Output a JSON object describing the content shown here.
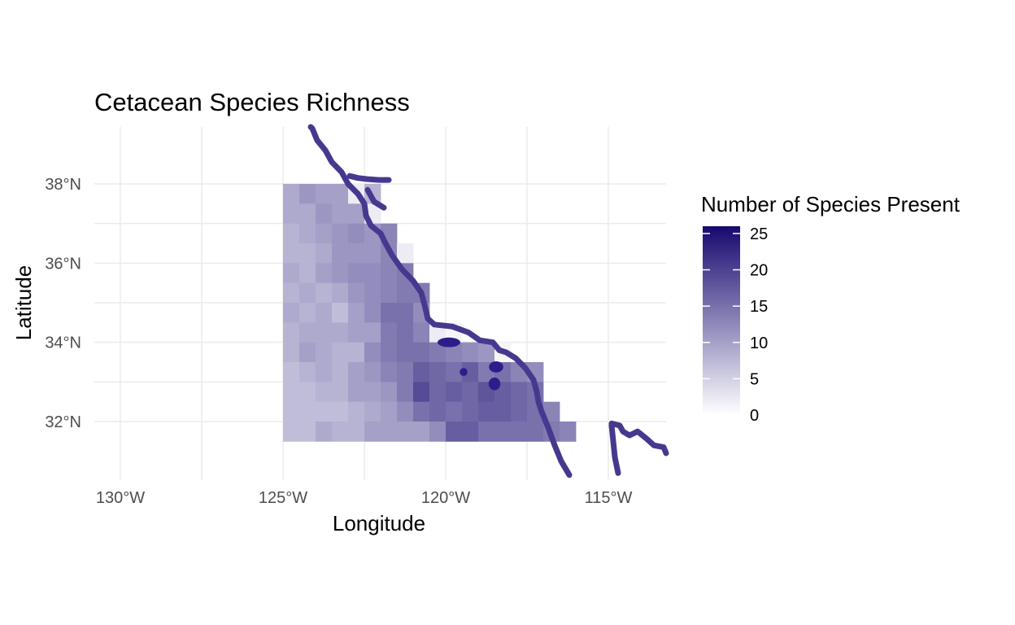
{
  "chart_data": {
    "type": "heatmap",
    "title": "Cetacean Species Richness",
    "xlabel": "Longitude",
    "ylabel": "Latitude",
    "xlim": [
      -130,
      -115
    ],
    "ylim": [
      32,
      38
    ],
    "x_ticks": [
      {
        "value": -130,
        "label": "130°W"
      },
      {
        "value": -125,
        "label": "125°W"
      },
      {
        "value": -120,
        "label": "120°W"
      },
      {
        "value": -115,
        "label": "115°W"
      }
    ],
    "y_ticks": [
      {
        "value": 38,
        "label": "38°N"
      },
      {
        "value": 36,
        "label": "36°N"
      },
      {
        "value": 34,
        "label": "34°N"
      },
      {
        "value": 32,
        "label": "32°N"
      }
    ],
    "grid": true,
    "legend": {
      "title": "Number of Species Present",
      "position": "right",
      "range": [
        0,
        25
      ],
      "breaks": [
        0,
        5,
        10,
        15,
        20,
        25
      ],
      "colors": {
        "low": "#ffffff",
        "high": "#16096f"
      }
    },
    "cell_size_degrees": 0.5,
    "grid_origin": {
      "lon": -125,
      "lat": 32
    },
    "rows_from_north": [
      {
        "lat_top": 38.0,
        "lon_start": -125.0,
        "values": [
          9,
          11,
          10,
          10,
          2,
          8
        ]
      },
      {
        "lat_top": 37.5,
        "lon_start": -125.0,
        "values": [
          9,
          9,
          11,
          10,
          10,
          2
        ]
      },
      {
        "lat_top": 37.0,
        "lon_start": -125.0,
        "values": [
          8,
          9,
          10,
          11,
          12,
          11,
          13
        ]
      },
      {
        "lat_top": 36.5,
        "lon_start": -125.0,
        "values": [
          8,
          8,
          9,
          11,
          11,
          11,
          13,
          2
        ]
      },
      {
        "lat_top": 36.0,
        "lon_start": -125.0,
        "values": [
          9,
          8,
          10,
          11,
          12,
          12,
          13,
          14
        ]
      },
      {
        "lat_top": 35.5,
        "lon_start": -125.0,
        "values": [
          8,
          9,
          8,
          9,
          11,
          12,
          13,
          14,
          14
        ]
      },
      {
        "lat_top": 35.0,
        "lon_start": -125.0,
        "values": [
          9,
          8,
          9,
          7,
          10,
          12,
          15,
          15,
          12
        ]
      },
      {
        "lat_top": 34.5,
        "lon_start": -125.0,
        "values": [
          8,
          9,
          9,
          9,
          10,
          10,
          14,
          15,
          13,
          2,
          1
        ]
      },
      {
        "lat_top": 34.0,
        "lon_start": -125.0,
        "values": [
          8,
          10,
          9,
          8,
          8,
          12,
          14,
          15,
          15,
          14,
          13,
          12,
          11,
          1
        ]
      },
      {
        "lat_top": 33.5,
        "lon_start": -125.0,
        "values": [
          7,
          8,
          9,
          8,
          10,
          11,
          13,
          14,
          17,
          16,
          15,
          17,
          14,
          15,
          13,
          12
        ]
      },
      {
        "lat_top": 33.0,
        "lon_start": -125.0,
        "values": [
          7,
          7,
          8,
          8,
          10,
          10,
          11,
          14,
          19,
          16,
          17,
          16,
          18,
          17,
          16,
          15
        ]
      },
      {
        "lat_top": 32.5,
        "lon_start": -125.0,
        "values": [
          7,
          7,
          7,
          7,
          8,
          9,
          10,
          12,
          15,
          16,
          15,
          16,
          17,
          17,
          16,
          15,
          13
        ]
      },
      {
        "lat_top": 32.0,
        "lon_start": -125.0,
        "values": [
          7,
          7,
          9,
          8,
          8,
          10,
          10,
          10,
          10,
          12,
          17,
          17,
          15,
          15,
          15,
          15,
          14,
          13
        ]
      }
    ],
    "coastline_segments": [
      [
        [
          -124.15,
          39.7
        ],
        [
          -124.1,
          39.4
        ],
        [
          -123.95,
          39.1
        ],
        [
          -123.7,
          38.85
        ],
        [
          -123.5,
          38.55
        ],
        [
          -123.2,
          38.3
        ],
        [
          -123.0,
          38.0
        ],
        [
          -122.7,
          37.75
        ],
        [
          -122.5,
          37.5
        ],
        [
          -122.45,
          37.2
        ],
        [
          -122.3,
          36.95
        ],
        [
          -122.0,
          36.75
        ],
        [
          -121.85,
          36.5
        ],
        [
          -121.65,
          36.2
        ],
        [
          -121.35,
          35.85
        ],
        [
          -121.0,
          35.55
        ],
        [
          -120.75,
          35.25
        ],
        [
          -120.65,
          34.95
        ],
        [
          -120.55,
          34.6
        ],
        [
          -120.35,
          34.45
        ],
        [
          -119.8,
          34.4
        ],
        [
          -119.3,
          34.25
        ],
        [
          -118.95,
          34.05
        ],
        [
          -118.55,
          34.0
        ],
        [
          -118.35,
          33.8
        ],
        [
          -118.15,
          33.75
        ],
        [
          -117.85,
          33.6
        ],
        [
          -117.55,
          33.35
        ],
        [
          -117.3,
          33.05
        ],
        [
          -117.2,
          32.75
        ],
        [
          -117.15,
          32.5
        ],
        [
          -117.05,
          32.25
        ],
        [
          -116.85,
          31.85
        ],
        [
          -116.65,
          31.4
        ],
        [
          -116.45,
          31.0
        ],
        [
          -116.2,
          30.65
        ]
      ],
      [
        [
          -122.95,
          38.2
        ],
        [
          -122.7,
          38.15
        ],
        [
          -122.4,
          38.12
        ],
        [
          -122.05,
          38.1
        ],
        [
          -121.75,
          38.1
        ]
      ],
      [
        [
          -122.4,
          37.85
        ],
        [
          -122.2,
          37.55
        ],
        [
          -121.9,
          37.4
        ]
      ],
      [
        [
          -114.9,
          31.95
        ],
        [
          -114.65,
          31.9
        ],
        [
          -114.55,
          31.75
        ],
        [
          -114.35,
          31.65
        ],
        [
          -114.1,
          31.75
        ],
        [
          -113.8,
          31.55
        ],
        [
          -113.6,
          31.4
        ],
        [
          -113.3,
          31.35
        ],
        [
          -113.1,
          31.2
        ]
      ],
      [
        [
          -114.9,
          31.9
        ],
        [
          -114.85,
          31.5
        ],
        [
          -114.8,
          31.1
        ],
        [
          -114.7,
          30.7
        ]
      ]
    ],
    "islands": [
      {
        "lon": -119.9,
        "lat": 34.0,
        "rx": 0.35,
        "ry": 0.08
      },
      {
        "lon": -119.45,
        "lat": 33.25,
        "rx": 0.12,
        "ry": 0.06
      },
      {
        "lon": -118.45,
        "lat": 33.38,
        "rx": 0.22,
        "ry": 0.1
      },
      {
        "lon": -118.5,
        "lat": 32.95,
        "rx": 0.18,
        "ry": 0.12
      }
    ]
  }
}
